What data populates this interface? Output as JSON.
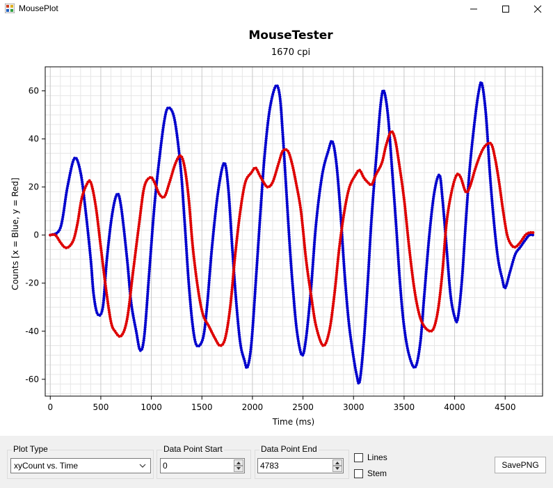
{
  "window": {
    "title": "MousePlot"
  },
  "chart_data": {
    "type": "line",
    "title": "MouseTester",
    "subtitle": "1670 cpi",
    "xlabel": "Time (ms)",
    "ylabel": "Counts [x = Blue, y = Red]",
    "xlim": [
      -50,
      4870
    ],
    "ylim": [
      -67,
      70
    ],
    "x_ticks": [
      "0",
      "500",
      "1000",
      "1500",
      "2000",
      "2500",
      "3000",
      "3500",
      "4000",
      "4500"
    ],
    "y_ticks": [
      "60",
      "40",
      "20",
      "0",
      "-20",
      "-40",
      "-60"
    ],
    "grid": true,
    "series": [
      {
        "color": "#0000cc",
        "points": [
          [
            0,
            0
          ],
          [
            100,
            3
          ],
          [
            170,
            20
          ],
          [
            240,
            32
          ],
          [
            300,
            26
          ],
          [
            350,
            10
          ],
          [
            400,
            -10
          ],
          [
            430,
            -25
          ],
          [
            470,
            -33
          ],
          [
            520,
            -30
          ],
          [
            560,
            -10
          ],
          [
            610,
            8
          ],
          [
            660,
            17
          ],
          [
            700,
            12
          ],
          [
            760,
            -10
          ],
          [
            800,
            -28
          ],
          [
            850,
            -40
          ],
          [
            890,
            -48
          ],
          [
            930,
            -42
          ],
          [
            980,
            -15
          ],
          [
            1030,
            12
          ],
          [
            1080,
            32
          ],
          [
            1130,
            48
          ],
          [
            1170,
            53
          ],
          [
            1230,
            48
          ],
          [
            1290,
            28
          ],
          [
            1330,
            5
          ],
          [
            1370,
            -20
          ],
          [
            1410,
            -38
          ],
          [
            1450,
            -46
          ],
          [
            1510,
            -43
          ],
          [
            1550,
            -30
          ],
          [
            1600,
            -5
          ],
          [
            1660,
            18
          ],
          [
            1720,
            30
          ],
          [
            1760,
            20
          ],
          [
            1800,
            -5
          ],
          [
            1840,
            -28
          ],
          [
            1880,
            -45
          ],
          [
            1920,
            -52
          ],
          [
            1950,
            -55
          ],
          [
            1990,
            -45
          ],
          [
            2040,
            -15
          ],
          [
            2080,
            10
          ],
          [
            2120,
            33
          ],
          [
            2170,
            52
          ],
          [
            2230,
            62
          ],
          [
            2270,
            58
          ],
          [
            2300,
            42
          ],
          [
            2330,
            22
          ],
          [
            2370,
            -5
          ],
          [
            2400,
            -22
          ],
          [
            2440,
            -40
          ],
          [
            2490,
            -50
          ],
          [
            2530,
            -43
          ],
          [
            2580,
            -22
          ],
          [
            2630,
            5
          ],
          [
            2690,
            25
          ],
          [
            2750,
            35
          ],
          [
            2790,
            39
          ],
          [
            2830,
            30
          ],
          [
            2870,
            10
          ],
          [
            2910,
            -15
          ],
          [
            2950,
            -35
          ],
          [
            2990,
            -48
          ],
          [
            3030,
            -58
          ],
          [
            3060,
            -61
          ],
          [
            3100,
            -45
          ],
          [
            3140,
            -20
          ],
          [
            3180,
            8
          ],
          [
            3230,
            35
          ],
          [
            3270,
            55
          ],
          [
            3300,
            60
          ],
          [
            3340,
            50
          ],
          [
            3380,
            28
          ],
          [
            3420,
            5
          ],
          [
            3460,
            -20
          ],
          [
            3500,
            -38
          ],
          [
            3550,
            -50
          ],
          [
            3610,
            -55
          ],
          [
            3660,
            -45
          ],
          [
            3700,
            -25
          ],
          [
            3750,
            0
          ],
          [
            3800,
            18
          ],
          [
            3850,
            25
          ],
          [
            3880,
            15
          ],
          [
            3920,
            -5
          ],
          [
            3960,
            -25
          ],
          [
            4000,
            -34
          ],
          [
            4030,
            -35
          ],
          [
            4070,
            -20
          ],
          [
            4110,
            5
          ],
          [
            4150,
            28
          ],
          [
            4200,
            48
          ],
          [
            4240,
            60
          ],
          [
            4270,
            63
          ],
          [
            4310,
            50
          ],
          [
            4350,
            25
          ],
          [
            4390,
            5
          ],
          [
            4430,
            -10
          ],
          [
            4470,
            -18
          ],
          [
            4500,
            -22
          ],
          [
            4550,
            -15
          ],
          [
            4600,
            -8
          ],
          [
            4650,
            -5
          ],
          [
            4700,
            -2
          ],
          [
            4740,
            0
          ],
          [
            4783,
            0
          ]
        ]
      },
      {
        "color": "#dd0000",
        "points": [
          [
            0,
            0
          ],
          [
            50,
            0
          ],
          [
            100,
            -3
          ],
          [
            140,
            -5
          ],
          [
            180,
            -5
          ],
          [
            230,
            -2
          ],
          [
            270,
            5
          ],
          [
            310,
            15
          ],
          [
            360,
            21
          ],
          [
            400,
            22
          ],
          [
            450,
            12
          ],
          [
            500,
            -5
          ],
          [
            550,
            -22
          ],
          [
            600,
            -36
          ],
          [
            640,
            -40
          ],
          [
            700,
            -42
          ],
          [
            760,
            -35
          ],
          [
            820,
            -15
          ],
          [
            880,
            5
          ],
          [
            930,
            20
          ],
          [
            990,
            24
          ],
          [
            1030,
            22
          ],
          [
            1080,
            17
          ],
          [
            1130,
            16
          ],
          [
            1180,
            22
          ],
          [
            1240,
            30
          ],
          [
            1290,
            33
          ],
          [
            1330,
            28
          ],
          [
            1370,
            15
          ],
          [
            1410,
            -5
          ],
          [
            1460,
            -22
          ],
          [
            1510,
            -33
          ],
          [
            1570,
            -38
          ],
          [
            1630,
            -43
          ],
          [
            1680,
            -46
          ],
          [
            1730,
            -43
          ],
          [
            1780,
            -30
          ],
          [
            1830,
            -8
          ],
          [
            1880,
            10
          ],
          [
            1930,
            22
          ],
          [
            1990,
            26
          ],
          [
            2030,
            28
          ],
          [
            2070,
            25
          ],
          [
            2110,
            22
          ],
          [
            2150,
            20
          ],
          [
            2200,
            22
          ],
          [
            2260,
            30
          ],
          [
            2300,
            35
          ],
          [
            2350,
            35
          ],
          [
            2390,
            30
          ],
          [
            2430,
            22
          ],
          [
            2480,
            10
          ],
          [
            2530,
            -10
          ],
          [
            2580,
            -25
          ],
          [
            2630,
            -38
          ],
          [
            2700,
            -46
          ],
          [
            2760,
            -40
          ],
          [
            2810,
            -25
          ],
          [
            2860,
            -5
          ],
          [
            2910,
            10
          ],
          [
            2960,
            20
          ],
          [
            3020,
            25
          ],
          [
            3060,
            27
          ],
          [
            3100,
            24
          ],
          [
            3140,
            22
          ],
          [
            3180,
            21
          ],
          [
            3220,
            25
          ],
          [
            3280,
            30
          ],
          [
            3320,
            37
          ],
          [
            3370,
            43
          ],
          [
            3410,
            40
          ],
          [
            3450,
            30
          ],
          [
            3500,
            15
          ],
          [
            3550,
            -5
          ],
          [
            3600,
            -22
          ],
          [
            3650,
            -33
          ],
          [
            3700,
            -38
          ],
          [
            3760,
            -40
          ],
          [
            3800,
            -38
          ],
          [
            3840,
            -30
          ],
          [
            3880,
            -15
          ],
          [
            3920,
            5
          ],
          [
            3970,
            18
          ],
          [
            4020,
            25
          ],
          [
            4060,
            24
          ],
          [
            4110,
            18
          ],
          [
            4150,
            20
          ],
          [
            4200,
            27
          ],
          [
            4250,
            33
          ],
          [
            4300,
            37
          ],
          [
            4360,
            38
          ],
          [
            4400,
            32
          ],
          [
            4440,
            22
          ],
          [
            4480,
            10
          ],
          [
            4520,
            0
          ],
          [
            4560,
            -4
          ],
          [
            4600,
            -5
          ],
          [
            4650,
            -3
          ],
          [
            4700,
            0
          ],
          [
            4740,
            1
          ],
          [
            4783,
            1
          ]
        ]
      }
    ]
  },
  "controls": {
    "plot_type": {
      "label": "Plot Type",
      "value": "xyCount vs. Time"
    },
    "data_point_start": {
      "label": "Data Point Start",
      "value": "0"
    },
    "data_point_end": {
      "label": "Data Point End",
      "value": "4783"
    },
    "lines_checkbox": {
      "label": "Lines"
    },
    "stem_checkbox": {
      "label": "Stem"
    },
    "save_button": {
      "label": "SavePNG"
    }
  }
}
